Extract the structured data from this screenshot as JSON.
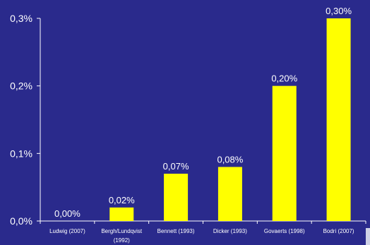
{
  "colors": {
    "background": "#2a2a8c",
    "bar": "#ffff00",
    "axis": "#ffffff",
    "text": "#ffffff"
  },
  "chart_data": {
    "type": "bar",
    "title": "",
    "xlabel": "",
    "ylabel": "",
    "categories": [
      "Ludwig (2007)",
      "Bergh/Lundqvist (1992)",
      "Bennett (1993)",
      "Dicker (1993)",
      "Govaerts (1998)",
      "Bodri (2007)"
    ],
    "category_lines": [
      [
        "Ludwig (2007)"
      ],
      [
        "Bergh/Lundqvist",
        "(1992)"
      ],
      [
        "Bennett (1993)"
      ],
      [
        "Dicker (1993)"
      ],
      [
        "Govaerts (1998)"
      ],
      [
        "Bodri (2007)"
      ]
    ],
    "values": [
      0.0,
      0.02,
      0.07,
      0.08,
      0.2,
      0.3
    ],
    "data_labels": [
      "0,00%",
      "0,02%",
      "0,07%",
      "0,08%",
      "0,20%",
      "0,30%"
    ],
    "ylim": [
      0,
      0.3
    ],
    "yticks": [
      0,
      0.1,
      0.2,
      0.3
    ],
    "ytick_labels": [
      "0,0%",
      "0,1%",
      "0,2%",
      "0,3%"
    ],
    "grid": false,
    "legend": "none"
  }
}
